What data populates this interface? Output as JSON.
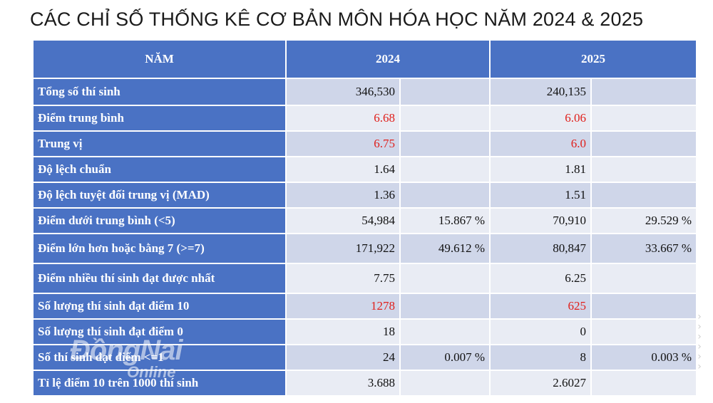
{
  "title": "CÁC CHỈ SỐ THỐNG KÊ CƠ BẢN MÔN HÓA HỌC NĂM 2024 & 2025",
  "table": {
    "header": {
      "col0": "NĂM",
      "col1": "2024",
      "col2": "2025"
    },
    "rows": [
      {
        "label": "Tổng số thí sinh",
        "v2024": "346,530",
        "p2024": "",
        "v2025": "240,135",
        "p2025": "",
        "red": false
      },
      {
        "label": "Điểm trung bình",
        "v2024": "6.68",
        "p2024": "",
        "v2025": "6.06",
        "p2025": "",
        "red": true
      },
      {
        "label": "Trung vị",
        "v2024": "6.75",
        "p2024": "",
        "v2025": "6.0",
        "p2025": "",
        "red": true
      },
      {
        "label": "Độ lệch chuẩn",
        "v2024": "1.64",
        "p2024": "",
        "v2025": "1.81",
        "p2025": "",
        "red": false
      },
      {
        "label": "Độ lệch tuyệt đối trung vị (MAD)",
        "v2024": "1.36",
        "p2024": "",
        "v2025": "1.51",
        "p2025": "",
        "red": false
      },
      {
        "label": "Điểm dưới trung bình (<5)",
        "v2024": "54,984",
        "p2024": "15.867 %",
        "v2025": "70,910",
        "p2025": "29.529 %",
        "red": false
      },
      {
        "label": "Điểm lớn hơn hoặc bằng 7 (>=7)",
        "v2024": "171,922",
        "p2024": "49.612 %",
        "v2025": "80,847",
        "p2025": "33.667 %",
        "red": false
      },
      {
        "label": "Điểm nhiều thí sinh đạt được nhất",
        "v2024": "7.75",
        "p2024": "",
        "v2025": "6.25",
        "p2025": "",
        "red": false
      },
      {
        "label": "Số lượng thí sinh đạt điểm 10",
        "v2024": "1278",
        "p2024": "",
        "v2025": "625",
        "p2025": "",
        "red": true
      },
      {
        "label": "Số lượng thí sinh đạt điểm 0",
        "v2024": "18",
        "p2024": "",
        "v2025": "0",
        "p2025": "",
        "red": false
      },
      {
        "label": "Số thí sinh đạt điểm <=1",
        "v2024": "24",
        "p2024": "0.007 %",
        "v2025": "8",
        "p2025": "0.003 %",
        "red": false
      },
      {
        "label": "Tỉ lệ điểm 10 trên 1000 thí sinh",
        "v2024": "3.688",
        "p2024": "",
        "v2025": "2.6027",
        "p2025": "",
        "red": false
      }
    ],
    "row_heights": [
      38,
      36,
      36,
      36,
      36,
      36,
      42,
      42,
      36,
      36,
      36,
      36
    ]
  },
  "watermark": {
    "logo": "ĐồngNai",
    "sub": "Online"
  },
  "colors": {
    "header_blue": "#4a72c4",
    "row_odd": "#cfd6e9",
    "row_even": "#e9ecf4",
    "highlight_red": "#e0201c"
  }
}
